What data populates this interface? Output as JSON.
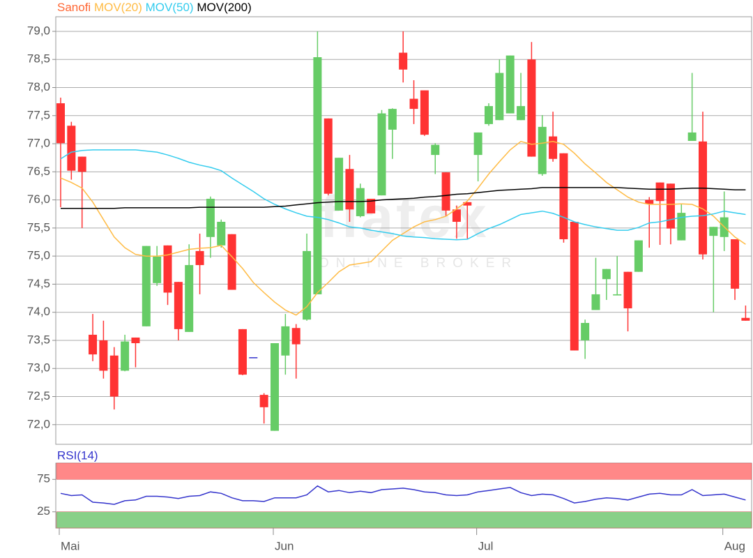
{
  "chart_data": [
    {
      "type": "candlestick",
      "name": "Sanofi",
      "name_color": "#ff6633",
      "up_color": "#66cc66",
      "down_color": "#ff3333",
      "flat_color": "#3333cc",
      "categories": [
        "Mai",
        null,
        null,
        null,
        null,
        null,
        null,
        null,
        null,
        null,
        null,
        null,
        null,
        null,
        null,
        null,
        null,
        null,
        null,
        null,
        "Jun",
        null,
        null,
        null,
        null,
        null,
        null,
        null,
        null,
        null,
        null,
        null,
        null,
        null,
        null,
        null,
        null,
        null,
        null,
        "Jul",
        null,
        null,
        null,
        null,
        null,
        null,
        null,
        null,
        null,
        null,
        null,
        null,
        null,
        null,
        null,
        null,
        null,
        null,
        null,
        null,
        null,
        null,
        "Aug",
        null,
        null
      ],
      "open": [
        77.72,
        77.32,
        76.77,
        73.6,
        73.5,
        73.23,
        72.96,
        73.55,
        73.75,
        74.52,
        75.19,
        74.54,
        73.65,
        75.09,
        75.34,
        75.19,
        75.39,
        73.7,
        73.2,
        72.53,
        71.89,
        73.23,
        73.72,
        73.87,
        74.32,
        77.45,
        75.81,
        76.55,
        75.71,
        76.02,
        76.08,
        77.25,
        78.62,
        77.8,
        77.95,
        76.8,
        76.49,
        75.83,
        75.96,
        76.8,
        77.35,
        77.42,
        77.54,
        77.42,
        78.5,
        76.46,
        77.13,
        76.83,
        75.61,
        73.5,
        74.04,
        74.59,
        74.3,
        74.72,
        74.72,
        76.0,
        76.31,
        76.29,
        75.28,
        77.05,
        77.04,
        75.36,
        75.34,
        75.3,
        73.9
      ],
      "high": [
        77.82,
        77.39,
        76.77,
        73.97,
        73.85,
        73.38,
        73.6,
        73.55,
        75.18,
        75.18,
        75.19,
        74.54,
        75.21,
        75.4,
        76.06,
        75.65,
        75.39,
        73.7,
        73.2,
        72.56,
        73.45,
        73.97,
        73.79,
        75.4,
        79.0,
        77.45,
        76.75,
        76.8,
        76.29,
        76.02,
        77.6,
        77.63,
        79.0,
        78.13,
        77.95,
        77.01,
        76.49,
        75.9,
        75.96,
        77.2,
        77.72,
        78.5,
        78.57,
        78.26,
        78.81,
        77.51,
        77.57,
        76.83,
        75.61,
        73.87,
        74.97,
        74.77,
        75.0,
        74.72,
        75.28,
        76.05,
        76.31,
        76.29,
        75.92,
        78.26,
        77.57,
        75.52,
        76.15,
        75.3,
        74.12
      ],
      "low": [
        75.87,
        76.36,
        75.5,
        73.13,
        72.82,
        72.27,
        72.95,
        73.02,
        73.75,
        74.47,
        74.13,
        73.5,
        73.65,
        74.32,
        74.97,
        75.15,
        74.4,
        72.88,
        73.2,
        72.02,
        71.89,
        72.89,
        72.82,
        73.85,
        74.32,
        76.08,
        75.81,
        75.61,
        75.69,
        75.76,
        76.08,
        76.73,
        78.09,
        77.35,
        77.14,
        76.46,
        75.71,
        75.31,
        75.31,
        76.33,
        77.32,
        77.42,
        77.54,
        77.42,
        76.77,
        76.43,
        76.68,
        75.24,
        73.32,
        73.17,
        74.04,
        74.22,
        74.3,
        73.66,
        74.72,
        75.15,
        75.2,
        75.21,
        75.28,
        77.05,
        74.94,
        74.0,
        75.09,
        74.22,
        73.85
      ],
      "close": [
        77.01,
        76.52,
        76.5,
        73.25,
        72.96,
        72.5,
        73.48,
        73.45,
        75.18,
        74.99,
        74.35,
        73.7,
        74.84,
        74.84,
        76.02,
        75.61,
        74.4,
        72.89,
        73.2,
        72.31,
        73.45,
        73.75,
        73.43,
        75.09,
        78.54,
        76.11,
        76.75,
        75.83,
        76.21,
        75.76,
        77.54,
        77.62,
        78.32,
        77.62,
        77.16,
        76.98,
        75.81,
        75.61,
        75.9,
        77.2,
        77.67,
        78.26,
        78.57,
        77.67,
        76.77,
        77.3,
        76.73,
        75.3,
        73.32,
        73.81,
        74.32,
        74.77,
        74.32,
        74.07,
        75.28,
        75.93,
        75.98,
        75.49,
        75.77,
        77.2,
        75.03,
        75.52,
        75.69,
        74.42,
        73.85
      ],
      "series": [
        {
          "name": "MOV(20)",
          "color": "#ffbb44",
          "values": [
            76.39,
            76.31,
            76.21,
            75.96,
            75.65,
            75.34,
            75.15,
            75.03,
            75.0,
            75.0,
            75.02,
            75.07,
            75.12,
            75.14,
            75.15,
            75.19,
            74.99,
            74.78,
            74.53,
            74.35,
            74.18,
            74.04,
            73.95,
            74.1,
            74.35,
            74.53,
            74.72,
            74.84,
            74.87,
            74.9,
            75.09,
            75.28,
            75.4,
            75.52,
            75.61,
            75.65,
            75.71,
            75.84,
            75.98,
            76.21,
            76.46,
            76.68,
            76.89,
            77.04,
            76.99,
            77.01,
            77.04,
            76.99,
            76.83,
            76.64,
            76.48,
            76.31,
            76.18,
            76.05,
            75.96,
            75.92,
            75.92,
            75.92,
            75.93,
            75.92,
            75.84,
            75.71,
            75.52,
            75.34,
            75.21
          ]
        },
        {
          "name": "MOV(50)",
          "color": "#33ccee",
          "values": [
            76.73,
            76.85,
            76.88,
            76.89,
            76.89,
            76.89,
            76.89,
            76.89,
            76.87,
            76.85,
            76.8,
            76.74,
            76.67,
            76.62,
            76.58,
            76.52,
            76.39,
            76.27,
            76.15,
            76.02,
            75.92,
            75.84,
            75.77,
            75.71,
            75.69,
            75.65,
            75.59,
            75.52,
            75.5,
            75.46,
            75.43,
            75.4,
            75.36,
            75.34,
            75.33,
            75.31,
            75.3,
            75.29,
            75.3,
            75.4,
            75.49,
            75.56,
            75.65,
            75.74,
            75.77,
            75.8,
            75.76,
            75.69,
            75.61,
            75.56,
            75.52,
            75.49,
            75.46,
            75.46,
            75.51,
            75.59,
            75.61,
            75.65,
            75.69,
            75.71,
            75.72,
            75.75,
            75.8,
            75.77,
            75.74
          ]
        },
        {
          "name": "MOV(200)",
          "color": "#000000",
          "values": [
            75.85,
            75.85,
            75.85,
            75.85,
            75.85,
            75.85,
            75.86,
            75.86,
            75.86,
            75.86,
            75.86,
            75.86,
            75.86,
            75.87,
            75.87,
            75.87,
            75.87,
            75.87,
            75.87,
            75.87,
            75.88,
            75.89,
            75.91,
            75.93,
            75.95,
            75.96,
            75.97,
            75.97,
            75.97,
            75.98,
            76.0,
            76.01,
            76.02,
            76.03,
            76.05,
            76.06,
            76.08,
            76.1,
            76.11,
            76.13,
            76.15,
            76.17,
            76.18,
            76.19,
            76.2,
            76.22,
            76.22,
            76.22,
            76.22,
            76.22,
            76.22,
            76.22,
            76.22,
            76.21,
            76.2,
            76.19,
            76.19,
            76.19,
            76.2,
            76.21,
            76.21,
            76.2,
            76.19,
            76.18,
            76.18
          ]
        }
      ],
      "ylim": [
        71.65,
        79.26
      ],
      "yticks": [
        {
          "value": 72,
          "label": "72,0"
        },
        {
          "value": 72.5,
          "label": "72,5"
        },
        {
          "value": 73,
          "label": "73,0"
        },
        {
          "value": 73.5,
          "label": "73,5"
        },
        {
          "value": 74,
          "label": "74,0"
        },
        {
          "value": 74.5,
          "label": "74,5"
        },
        {
          "value": 75,
          "label": "75,0"
        },
        {
          "value": 75.5,
          "label": "75,5"
        },
        {
          "value": 76,
          "label": "76,0"
        },
        {
          "value": 76.5,
          "label": "76,5"
        },
        {
          "value": 77,
          "label": "77,0"
        },
        {
          "value": 77.5,
          "label": "77,5"
        },
        {
          "value": 78,
          "label": "78,0"
        },
        {
          "value": 78.5,
          "label": "78,5"
        },
        {
          "value": 79,
          "label": "79,0"
        }
      ],
      "grid": true,
      "watermark": [
        "flatex",
        "ONLINE BROKER"
      ]
    },
    {
      "type": "line",
      "series": [
        {
          "name": "RSI(14)",
          "color": "#3333cc",
          "values": [
            53.4,
            50.0,
            51.1,
            39.8,
            38.6,
            36.4,
            42.0,
            43.2,
            48.9,
            48.9,
            47.7,
            45.5,
            48.9,
            50.0,
            55.7,
            53.4,
            46.6,
            42.0,
            42.0,
            40.9,
            46.6,
            46.6,
            46.6,
            51.1,
            64.8,
            55.7,
            57.9,
            54.5,
            56.8,
            54.5,
            59.1,
            60.2,
            61.4,
            59.1,
            55.7,
            54.5,
            51.1,
            50.0,
            51.1,
            55.7,
            57.9,
            60.2,
            62.5,
            54.5,
            50.0,
            52.3,
            51.1,
            45.5,
            38.6,
            40.9,
            44.3,
            46.6,
            45.5,
            43.2,
            47.7,
            52.3,
            53.4,
            51.1,
            51.1,
            59.1,
            50.0,
            51.1,
            52.3,
            47.7,
            43.2
          ]
        }
      ],
      "ylim": [
        0,
        100
      ],
      "yticks": [
        25,
        75
      ],
      "zones": [
        {
          "from": 75,
          "to": 100,
          "color": "#ff8888"
        },
        {
          "from": 0,
          "to": 25,
          "color": "#88d088"
        }
      ]
    }
  ]
}
